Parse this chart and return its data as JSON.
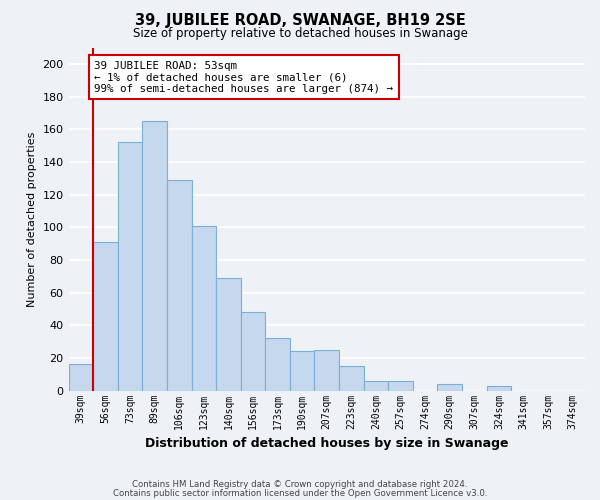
{
  "title": "39, JUBILEE ROAD, SWANAGE, BH19 2SE",
  "subtitle": "Size of property relative to detached houses in Swanage",
  "xlabel": "Distribution of detached houses by size in Swanage",
  "ylabel": "Number of detached properties",
  "bar_labels": [
    "39sqm",
    "56sqm",
    "73sqm",
    "89sqm",
    "106sqm",
    "123sqm",
    "140sqm",
    "156sqm",
    "173sqm",
    "190sqm",
    "207sqm",
    "223sqm",
    "240sqm",
    "257sqm",
    "274sqm",
    "290sqm",
    "307sqm",
    "324sqm",
    "341sqm",
    "357sqm",
    "374sqm"
  ],
  "bar_values": [
    16,
    91,
    152,
    165,
    129,
    101,
    69,
    48,
    32,
    24,
    25,
    15,
    6,
    6,
    0,
    4,
    0,
    3,
    0,
    0,
    0
  ],
  "bar_color": "#c5d8ed",
  "bar_edge_color": "#7bafd4",
  "highlight_bar_index": 0,
  "highlight_edge_color": "#cc0000",
  "annotation_box_text": "39 JUBILEE ROAD: 53sqm\n← 1% of detached houses are smaller (6)\n99% of semi-detached houses are larger (874) →",
  "ylim": [
    0,
    210
  ],
  "yticks": [
    0,
    20,
    40,
    60,
    80,
    100,
    120,
    140,
    160,
    180,
    200
  ],
  "footer_line1": "Contains HM Land Registry data © Crown copyright and database right 2024.",
  "footer_line2": "Contains public sector information licensed under the Open Government Licence v3.0.",
  "background_color": "#eef2f7",
  "grid_color": "#ffffff"
}
